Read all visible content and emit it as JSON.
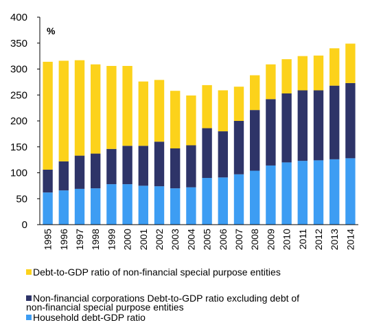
{
  "chart_data": {
    "type": "bar",
    "stacked": true,
    "unit_label": "%",
    "categories": [
      "1995",
      "1996",
      "1997",
      "1998",
      "1999",
      "2000",
      "2001",
      "2002",
      "2003",
      "2004",
      "2005",
      "2006",
      "2007",
      "2008",
      "2009",
      "2010",
      "2011",
      "2012",
      "2013",
      "2014"
    ],
    "series": [
      {
        "name": "Household debt-GDP ratio",
        "color": "#3d9df3",
        "values": [
          62,
          66,
          69,
          70,
          78,
          78,
          75,
          74,
          70,
          72,
          90,
          91,
          97,
          104,
          114,
          120,
          123,
          124,
          126,
          128
        ]
      },
      {
        "name": "Non-financial corporations Debt-to-GDP ratio excluding debt of non-financial special purpose entities",
        "color": "#2e3468",
        "values": [
          44,
          56,
          64,
          67,
          68,
          74,
          77,
          86,
          77,
          81,
          96,
          89,
          103,
          117,
          128,
          133,
          136,
          135,
          142,
          145
        ]
      },
      {
        "name": "Debt-to-GDP ratio of non-financial special purpose entities",
        "color": "#fcd21b",
        "values": [
          208,
          194,
          184,
          172,
          160,
          154,
          124,
          119,
          111,
          96,
          83,
          79,
          66,
          67,
          67,
          66,
          66,
          67,
          72,
          76
        ]
      }
    ],
    "ylim": [
      0,
      400
    ],
    "yticks": [
      0,
      50,
      100,
      150,
      200,
      250,
      300,
      350,
      400
    ],
    "legend_placement": "bottom",
    "legend": [
      {
        "color": "#fcd21b",
        "label": "Debt-to-GDP ratio of non-financial special purpose entities"
      },
      {
        "color": "#2e3468",
        "label": "Non-financial corporations Debt-to-GDP ratio excluding debt of\nnon-financial special purpose entities"
      },
      {
        "color": "#3d9df3",
        "label": "Household debt-GDP ratio"
      }
    ],
    "grid": false
  }
}
